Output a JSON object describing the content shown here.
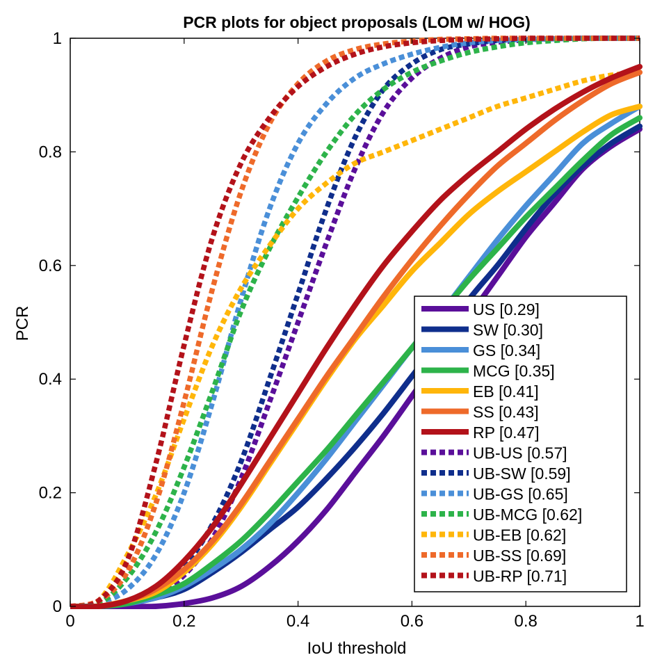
{
  "chart_data": {
    "type": "line",
    "title": "PCR plots for object proposals (LOM w/ HOG)",
    "xlabel": "IoU threshold",
    "ylabel": "PCR",
    "xlim": [
      0,
      1
    ],
    "ylim": [
      0,
      1
    ],
    "xticks": [
      0,
      0.2,
      0.4,
      0.6,
      0.8,
      1
    ],
    "yticks": [
      0,
      0.2,
      0.4,
      0.6,
      0.8,
      1
    ],
    "xtick_labels": [
      "0",
      "0.2",
      "0.4",
      "0.6",
      "0.8",
      "1"
    ],
    "ytick_labels": [
      "0",
      "0.2",
      "0.4",
      "0.6",
      "0.8",
      "1"
    ],
    "legend_position": "bottom-right",
    "x": [
      0,
      0.05,
      0.1,
      0.15,
      0.2,
      0.25,
      0.3,
      0.35,
      0.4,
      0.45,
      0.5,
      0.55,
      0.6,
      0.65,
      0.7,
      0.75,
      0.8,
      0.85,
      0.9,
      0.95,
      1.0
    ],
    "series": [
      {
        "name": "US",
        "legend_label": "US [0.29]",
        "color": "#5a0f9a",
        "style": "solid",
        "values": [
          0,
          0,
          0,
          0,
          0.005,
          0.015,
          0.035,
          0.07,
          0.115,
          0.17,
          0.235,
          0.3,
          0.37,
          0.44,
          0.51,
          0.58,
          0.65,
          0.71,
          0.77,
          0.81,
          0.84
        ]
      },
      {
        "name": "SW",
        "legend_label": "SW [0.30]",
        "color": "#0f2e8c",
        "style": "solid",
        "values": [
          0,
          0,
          0.005,
          0.015,
          0.03,
          0.06,
          0.095,
          0.135,
          0.175,
          0.225,
          0.28,
          0.34,
          0.405,
          0.47,
          0.54,
          0.6,
          0.665,
          0.725,
          0.775,
          0.815,
          0.845
        ]
      },
      {
        "name": "GS",
        "legend_label": "GS [0.34]",
        "color": "#4a8fd8",
        "style": "solid",
        "values": [
          0,
          0,
          0.005,
          0.015,
          0.035,
          0.065,
          0.1,
          0.145,
          0.2,
          0.26,
          0.325,
          0.39,
          0.455,
          0.515,
          0.58,
          0.645,
          0.705,
          0.76,
          0.815,
          0.85,
          0.88
        ]
      },
      {
        "name": "MCG",
        "legend_label": "MCG [0.35]",
        "color": "#2db34a",
        "style": "solid",
        "values": [
          0,
          0,
          0.005,
          0.02,
          0.04,
          0.075,
          0.115,
          0.165,
          0.22,
          0.275,
          0.335,
          0.395,
          0.455,
          0.515,
          0.575,
          0.63,
          0.685,
          0.735,
          0.785,
          0.83,
          0.86
        ]
      },
      {
        "name": "EB",
        "legend_label": "EB [0.41]",
        "color": "#ffb60a",
        "style": "solid",
        "values": [
          0,
          0,
          0.01,
          0.025,
          0.06,
          0.11,
          0.175,
          0.25,
          0.325,
          0.4,
          0.47,
          0.53,
          0.59,
          0.64,
          0.69,
          0.73,
          0.765,
          0.8,
          0.835,
          0.865,
          0.88
        ]
      },
      {
        "name": "SS",
        "legend_label": "SS [0.43]",
        "color": "#ee6a2a",
        "style": "solid",
        "values": [
          0,
          0,
          0.01,
          0.03,
          0.065,
          0.115,
          0.18,
          0.255,
          0.33,
          0.405,
          0.475,
          0.545,
          0.61,
          0.67,
          0.725,
          0.775,
          0.815,
          0.855,
          0.89,
          0.92,
          0.94
        ]
      },
      {
        "name": "RP",
        "legend_label": "RP [0.47]",
        "color": "#b3121a",
        "style": "solid",
        "values": [
          0,
          0,
          0.01,
          0.035,
          0.08,
          0.14,
          0.215,
          0.295,
          0.375,
          0.455,
          0.53,
          0.6,
          0.66,
          0.715,
          0.76,
          0.8,
          0.84,
          0.875,
          0.905,
          0.93,
          0.95
        ]
      },
      {
        "name": "UB-US",
        "legend_label": "UB-US [0.57]",
        "color": "#5a0f9a",
        "style": "dotted",
        "values": [
          0,
          0,
          0.005,
          0.02,
          0.055,
          0.12,
          0.225,
          0.36,
          0.5,
          0.64,
          0.77,
          0.87,
          0.93,
          0.965,
          0.985,
          0.993,
          0.997,
          0.999,
          1,
          1,
          1
        ]
      },
      {
        "name": "UB-SW",
        "legend_label": "UB-SW [0.59]",
        "color": "#0f2e8c",
        "style": "dotted",
        "values": [
          0,
          0,
          0.005,
          0.025,
          0.07,
          0.145,
          0.255,
          0.4,
          0.55,
          0.7,
          0.825,
          0.91,
          0.955,
          0.98,
          0.99,
          0.996,
          0.998,
          0.999,
          1,
          1,
          1
        ]
      },
      {
        "name": "UB-GS",
        "legend_label": "UB-GS [0.65]",
        "color": "#4a8fd8",
        "style": "dotted",
        "values": [
          0,
          0.005,
          0.03,
          0.09,
          0.2,
          0.36,
          0.54,
          0.7,
          0.815,
          0.885,
          0.93,
          0.955,
          0.972,
          0.984,
          0.992,
          0.996,
          0.998,
          0.999,
          1,
          1,
          1
        ]
      },
      {
        "name": "UB-MCG",
        "legend_label": "UB-MCG [0.62]",
        "color": "#2db34a",
        "style": "dotted",
        "values": [
          0,
          0.005,
          0.05,
          0.13,
          0.245,
          0.38,
          0.52,
          0.63,
          0.72,
          0.8,
          0.865,
          0.91,
          0.94,
          0.96,
          0.975,
          0.985,
          0.992,
          0.996,
          0.999,
          1,
          1
        ]
      },
      {
        "name": "UB-EB",
        "legend_label": "UB-EB [0.62]",
        "color": "#ffb60a",
        "style": "dotted",
        "values": [
          0,
          0.01,
          0.09,
          0.195,
          0.33,
          0.46,
          0.56,
          0.635,
          0.7,
          0.745,
          0.78,
          0.8,
          0.82,
          0.84,
          0.86,
          0.88,
          0.895,
          0.91,
          0.925,
          0.935,
          0.94
        ]
      },
      {
        "name": "UB-SS",
        "legend_label": "UB-SS [0.69]",
        "color": "#ee6a2a",
        "style": "dotted",
        "values": [
          0,
          0.01,
          0.06,
          0.18,
          0.36,
          0.56,
          0.73,
          0.85,
          0.92,
          0.96,
          0.98,
          0.99,
          0.995,
          0.998,
          0.999,
          1,
          1,
          1,
          1,
          1,
          1
        ]
      },
      {
        "name": "UB-RP",
        "legend_label": "UB-RP [0.71]",
        "color": "#b3121a",
        "style": "dotted",
        "values": [
          0,
          0.01,
          0.08,
          0.25,
          0.46,
          0.65,
          0.78,
          0.86,
          0.915,
          0.95,
          0.972,
          0.985,
          0.992,
          0.996,
          0.998,
          0.999,
          1,
          1,
          1,
          1,
          1
        ]
      }
    ]
  }
}
